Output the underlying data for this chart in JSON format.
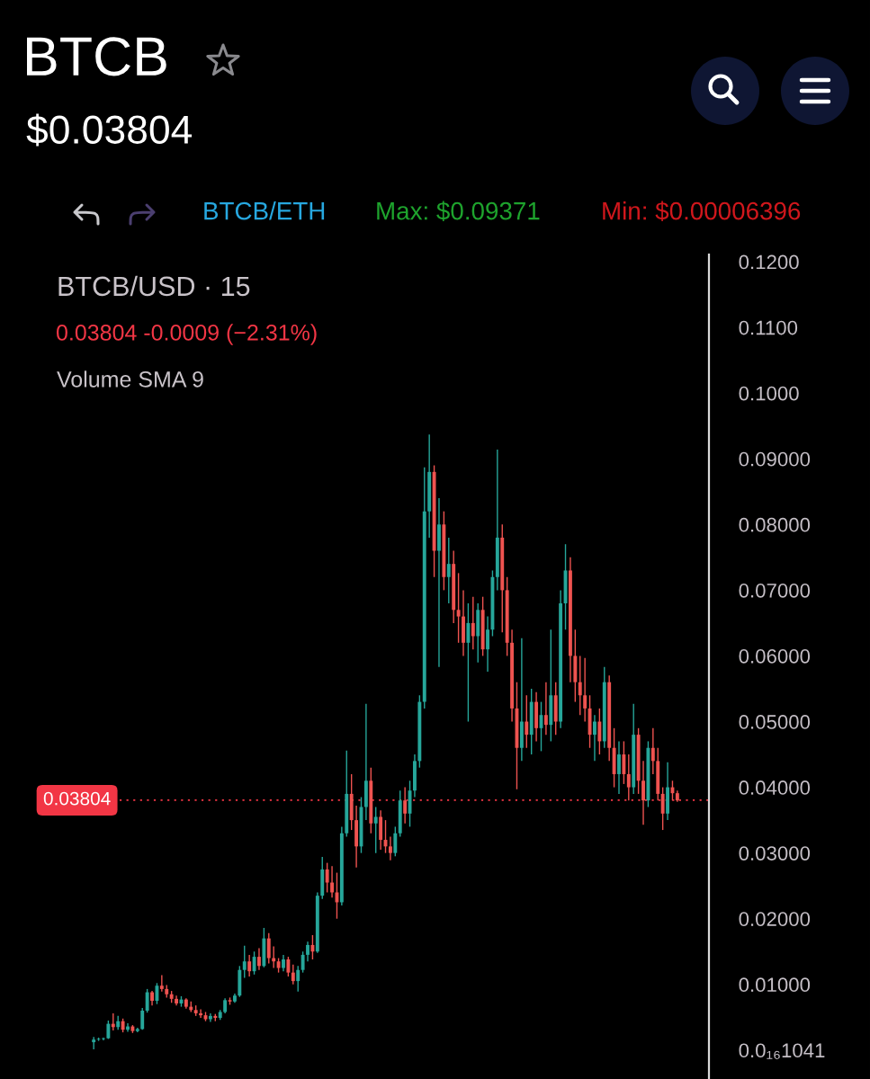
{
  "chart_data": {
    "type": "candlestick",
    "title": "BTCB",
    "subtitle": "$0.03804",
    "annotations": [
      "BTCB/ETH",
      "Max: $0.09371",
      "Min: $0.00006396",
      "BTCB/USD · 15",
      "0.03804 -0.0009 (−2.31%)",
      "Volume SMA 9"
    ],
    "categories": [
      null,
      null,
      null,
      null,
      null,
      null,
      null,
      null,
      null,
      null,
      null,
      null,
      null,
      null,
      null,
      null,
      null,
      null,
      null,
      null,
      null,
      null,
      null,
      null,
      null,
      null,
      null,
      null,
      null,
      null,
      null,
      null,
      null,
      null,
      null,
      null,
      null,
      null,
      null,
      null,
      null,
      null,
      null,
      null,
      null,
      null,
      null,
      null,
      null,
      null,
      null,
      null,
      null,
      null,
      null,
      null,
      null,
      null,
      null,
      null,
      null,
      null,
      null,
      null,
      null,
      null,
      null,
      null,
      null,
      null,
      null,
      null,
      null,
      null,
      null,
      null,
      null,
      null,
      null,
      null,
      null,
      null,
      null,
      null,
      null,
      null,
      null,
      null,
      null,
      null,
      null,
      null,
      null,
      null,
      null,
      null,
      null,
      null,
      null,
      null,
      null,
      null,
      null,
      null,
      null,
      null,
      null,
      null,
      null,
      null,
      null,
      null,
      null,
      null,
      null,
      null,
      null,
      null,
      null,
      null,
      null,
      null,
      null,
      null,
      null,
      null,
      null,
      null,
      null,
      null,
      null,
      null,
      null,
      null,
      null,
      null,
      null,
      null
    ],
    "ohlc": [
      null,
      null,
      null,
      null,
      null,
      null,
      null,
      null,
      null,
      null,
      null,
      [
        0.0012,
        0.002,
        0.0001,
        0.0016
      ],
      [
        0.0016,
        0.0019,
        0.0014,
        0.0017
      ],
      [
        0.0017,
        0.0019,
        0.0015,
        0.0018
      ],
      [
        0.0018,
        0.0045,
        0.0017,
        0.004
      ],
      [
        0.004,
        0.0056,
        0.003,
        0.0035
      ],
      [
        0.0035,
        0.0052,
        0.0031,
        0.0044
      ],
      [
        0.0044,
        0.0048,
        0.0027,
        0.0031
      ],
      [
        0.0031,
        0.0041,
        0.0028,
        0.0036
      ],
      [
        0.0036,
        0.0038,
        0.0026,
        0.0029
      ],
      [
        0.0029,
        0.0034,
        0.0027,
        0.0032
      ],
      [
        0.0032,
        0.0064,
        0.0031,
        0.006
      ],
      [
        0.006,
        0.0093,
        0.0057,
        0.0088
      ],
      [
        0.0088,
        0.009,
        0.0068,
        0.0075
      ],
      [
        0.0075,
        0.0102,
        0.007,
        0.0098
      ],
      [
        0.0098,
        0.0114,
        0.0089,
        0.0093
      ],
      [
        0.0093,
        0.0099,
        0.008,
        0.0085
      ],
      [
        0.0085,
        0.009,
        0.0072,
        0.0078
      ],
      [
        0.0078,
        0.0083,
        0.0068,
        0.0071
      ],
      [
        0.0071,
        0.0082,
        0.0066,
        0.0077
      ],
      [
        0.0077,
        0.0079,
        0.0063,
        0.0066
      ],
      [
        0.0066,
        0.0074,
        0.0058,
        0.0061
      ],
      [
        0.0061,
        0.0068,
        0.0052,
        0.0056
      ],
      [
        0.0056,
        0.0062,
        0.0049,
        0.0053
      ],
      [
        0.0053,
        0.0058,
        0.0044,
        0.0047
      ],
      [
        0.0047,
        0.0056,
        0.0043,
        0.0052
      ],
      [
        0.0052,
        0.0055,
        0.0044,
        0.0049
      ],
      [
        0.0049,
        0.0061,
        0.0046,
        0.0058
      ],
      [
        0.0058,
        0.0079,
        0.0056,
        0.0076
      ],
      [
        0.0076,
        0.008,
        0.0069,
        0.0074
      ],
      [
        0.0074,
        0.0086,
        0.0072,
        0.0083
      ],
      [
        0.0083,
        0.0128,
        0.0081,
        0.0122
      ],
      [
        0.0122,
        0.0159,
        0.011,
        0.0135
      ],
      [
        0.0135,
        0.0145,
        0.0112,
        0.012
      ],
      [
        0.012,
        0.015,
        0.0115,
        0.0142
      ],
      [
        0.0142,
        0.0155,
        0.0122,
        0.0128
      ],
      [
        0.0128,
        0.0186,
        0.0126,
        0.017
      ],
      [
        0.017,
        0.0178,
        0.0132,
        0.014
      ],
      [
        0.014,
        0.0158,
        0.0125,
        0.0135
      ],
      [
        0.0135,
        0.014,
        0.0118,
        0.0125
      ],
      [
        0.0125,
        0.0145,
        0.012,
        0.0138
      ],
      [
        0.0138,
        0.0142,
        0.0112,
        0.0118
      ],
      [
        0.0118,
        0.013,
        0.01,
        0.0105
      ],
      [
        0.0105,
        0.0128,
        0.0089,
        0.0122
      ],
      [
        0.0122,
        0.015,
        0.0118,
        0.0145
      ],
      [
        0.0145,
        0.0165,
        0.0135,
        0.016
      ],
      [
        0.016,
        0.0175,
        0.0138,
        0.015
      ],
      [
        0.015,
        0.024,
        0.0148,
        0.0235
      ],
      [
        0.0235,
        0.0294,
        0.023,
        0.0275
      ],
      [
        0.0275,
        0.0285,
        0.024,
        0.0255
      ],
      [
        0.0255,
        0.028,
        0.0232,
        0.024
      ],
      [
        0.024,
        0.027,
        0.02,
        0.0225
      ],
      [
        0.0225,
        0.034,
        0.022,
        0.033
      ],
      [
        0.033,
        0.0456,
        0.0325,
        0.039
      ],
      [
        0.039,
        0.042,
        0.0335,
        0.035
      ],
      [
        0.035,
        0.0372,
        0.0278,
        0.031
      ],
      [
        0.031,
        0.0385,
        0.03,
        0.037
      ],
      [
        0.037,
        0.0527,
        0.035,
        0.041
      ],
      [
        0.041,
        0.043,
        0.033,
        0.0345
      ],
      [
        0.0345,
        0.037,
        0.03,
        0.0355
      ],
      [
        0.0355,
        0.0365,
        0.0305,
        0.032
      ],
      [
        0.032,
        0.035,
        0.03,
        0.031
      ],
      [
        0.031,
        0.0325,
        0.0289,
        0.03
      ],
      [
        0.03,
        0.034,
        0.0295,
        0.033
      ],
      [
        0.033,
        0.0395,
        0.0325,
        0.038
      ],
      [
        0.038,
        0.04,
        0.0345,
        0.036
      ],
      [
        0.036,
        0.041,
        0.034,
        0.0395
      ],
      [
        0.0395,
        0.045,
        0.0385,
        0.044
      ],
      [
        0.044,
        0.054,
        0.043,
        0.053
      ],
      [
        0.053,
        0.0887,
        0.052,
        0.082
      ],
      [
        0.082,
        0.0937,
        0.078,
        0.088
      ],
      [
        0.088,
        0.089,
        0.072,
        0.076
      ],
      [
        0.076,
        0.084,
        0.0583,
        0.08
      ],
      [
        0.08,
        0.082,
        0.07,
        0.072
      ],
      [
        0.072,
        0.078,
        0.068,
        0.074
      ],
      [
        0.074,
        0.076,
        0.065,
        0.067
      ],
      [
        0.067,
        0.0726,
        0.062,
        0.066
      ],
      [
        0.066,
        0.07,
        0.06,
        0.062
      ],
      [
        0.062,
        0.068,
        0.05,
        0.065
      ],
      [
        0.065,
        0.069,
        0.061,
        0.063
      ],
      [
        0.063,
        0.068,
        0.059,
        0.067
      ],
      [
        0.067,
        0.069,
        0.06,
        0.061
      ],
      [
        0.061,
        0.066,
        0.0576,
        0.064
      ],
      [
        0.064,
        0.073,
        0.063,
        0.072
      ],
      [
        0.072,
        0.0914,
        0.07,
        0.078
      ],
      [
        0.078,
        0.08,
        0.0636,
        0.07
      ],
      [
        0.07,
        0.072,
        0.06,
        0.062
      ],
      [
        0.062,
        0.064,
        0.05,
        0.052
      ],
      [
        0.052,
        0.056,
        0.0397,
        0.046
      ],
      [
        0.046,
        0.0627,
        0.044,
        0.05
      ],
      [
        0.05,
        0.054,
        0.046,
        0.048
      ],
      [
        0.048,
        0.055,
        0.045,
        0.053
      ],
      [
        0.053,
        0.0545,
        0.047,
        0.049
      ],
      [
        0.049,
        0.053,
        0.0455,
        0.051
      ],
      [
        0.051,
        0.056,
        0.048,
        0.0495
      ],
      [
        0.0495,
        0.064,
        0.047,
        0.054
      ],
      [
        0.054,
        0.056,
        0.048,
        0.05
      ],
      [
        0.05,
        0.07,
        0.049,
        0.068
      ],
      [
        0.068,
        0.077,
        0.064,
        0.073
      ],
      [
        0.073,
        0.075,
        0.056,
        0.06
      ],
      [
        0.06,
        0.064,
        0.053,
        0.056
      ],
      [
        0.056,
        0.06,
        0.051,
        0.054
      ],
      [
        0.054,
        0.0597,
        0.05,
        0.052
      ],
      [
        0.052,
        0.054,
        0.046,
        0.048
      ],
      [
        0.048,
        0.051,
        0.044,
        0.05
      ],
      [
        0.05,
        0.052,
        0.045,
        0.047
      ],
      [
        0.047,
        0.0583,
        0.046,
        0.056
      ],
      [
        0.056,
        0.057,
        0.044,
        0.046
      ],
      [
        0.046,
        0.049,
        0.04,
        0.042
      ],
      [
        0.042,
        0.047,
        0.039,
        0.045
      ],
      [
        0.045,
        0.047,
        0.0405,
        0.042
      ],
      [
        0.042,
        0.045,
        0.038,
        0.04
      ],
      [
        0.04,
        0.0527,
        0.039,
        0.048
      ],
      [
        0.048,
        0.049,
        0.039,
        0.041
      ],
      [
        0.041,
        0.044,
        0.0343,
        0.038
      ],
      [
        0.038,
        0.047,
        0.037,
        0.046
      ],
      [
        0.046,
        0.049,
        0.042,
        0.044
      ],
      [
        0.044,
        0.046,
        0.038,
        0.039
      ],
      [
        0.039,
        0.04,
        0.0335,
        0.036
      ],
      [
        0.036,
        0.0438,
        0.035,
        0.04
      ],
      [
        0.04,
        0.041,
        0.038,
        0.0391
      ],
      [
        0.0391,
        0.0395,
        0.0378,
        0.038
      ],
      null,
      null,
      null,
      null,
      null,
      null
    ],
    "colors": [
      null,
      null,
      null,
      null,
      null,
      null,
      null,
      null,
      null,
      null,
      null,
      "#26a69a",
      "#26a69a",
      "#26a69a",
      "#26a69a",
      "#ef5350",
      "#26a69a",
      "#ef5350",
      "#26a69a",
      "#ef5350",
      "#26a69a",
      "#26a69a",
      "#26a69a",
      "#ef5350",
      "#26a69a",
      "#ef5350",
      "#ef5350",
      "#ef5350",
      "#ef5350",
      "#26a69a",
      "#ef5350",
      "#ef5350",
      "#ef5350",
      "#ef5350",
      "#ef5350",
      "#26a69a",
      "#ef5350",
      "#26a69a",
      "#26a69a",
      "#ef5350",
      "#26a69a",
      "#26a69a",
      "#26a69a",
      "#ef5350",
      "#26a69a",
      "#ef5350",
      "#26a69a",
      "#ef5350",
      "#ef5350",
      "#ef5350",
      "#26a69a",
      "#ef5350",
      "#ef5350",
      "#26a69a",
      "#26a69a",
      "#26a69a",
      "#ef5350",
      "#26a69a",
      "#26a69a",
      "#ef5350",
      "#ef5350",
      "#ef5350",
      "#26a69a",
      "#26a69a",
      "#ef5350",
      "#ef5350",
      "#26a69a",
      "#26a69a",
      "#ef5350",
      "#26a69a",
      "#ef5350",
      "#ef5350",
      "#ef5350",
      "#26a69a",
      "#26a69a",
      "#ef5350",
      "#26a69a",
      "#26a69a",
      "#26a69a",
      "#26a69a",
      "#26a69a",
      "#ef5350",
      "#26a69a",
      "#ef5350",
      "#26a69a",
      "#ef5350",
      "#ef5350",
      "#ef5350",
      "#26a69a",
      "#ef5350",
      "#26a69a",
      "#ef5350",
      "#26a69a",
      "#26a69a",
      "#26a69a",
      "#ef5350",
      "#ef5350",
      "#ef5350",
      "#ef5350",
      "#26a69a",
      "#ef5350",
      "#26a69a",
      "#ef5350",
      "#26a69a",
      "#ef5350",
      "#26a69a",
      "#ef5350",
      "#26a69a",
      "#26a69a",
      "#ef5350",
      "#ef5350",
      "#ef5350",
      "#ef5350",
      "#ef5350",
      "#26a69a",
      "#ef5350",
      "#26a69a",
      "#ef5350",
      "#ef5350",
      "#26a69a",
      "#ef5350",
      "#ef5350",
      "#26a69a",
      "#ef5350",
      "#ef5350",
      "#26a69a",
      "#ef5350",
      "#ef5350",
      "#ef5350",
      "#26a69a",
      "#ef5350",
      "#ef5350",
      null,
      null,
      null,
      null,
      null,
      null
    ],
    "ylim": [
      -0.0044,
      0.1211
    ],
    "yticks": [
      {
        "value": 1.041e-17,
        "label": "0.0₁₆1041"
      },
      {
        "value": 0.01,
        "label": "0.01000"
      },
      {
        "value": 0.02,
        "label": "0.02000"
      },
      {
        "value": 0.03,
        "label": "0.03000"
      },
      {
        "value": 0.04,
        "label": "0.04000"
      },
      {
        "value": 0.05,
        "label": "0.05000"
      },
      {
        "value": 0.06,
        "label": "0.06000"
      },
      {
        "value": 0.07,
        "label": "0.07000"
      },
      {
        "value": 0.08,
        "label": "0.08000"
      },
      {
        "value": 0.09,
        "label": "0.09000"
      },
      {
        "value": 0.1,
        "label": "0.1000"
      },
      {
        "value": 0.11,
        "label": "0.1100"
      },
      {
        "value": 0.12,
        "label": "0.1200"
      }
    ],
    "ref_lines": [
      {
        "axis": "y",
        "value": 0.03804,
        "label": "0.03804",
        "color": "#f23645",
        "line_style": "dotted"
      }
    ],
    "tick_labels": "y"
  }
}
